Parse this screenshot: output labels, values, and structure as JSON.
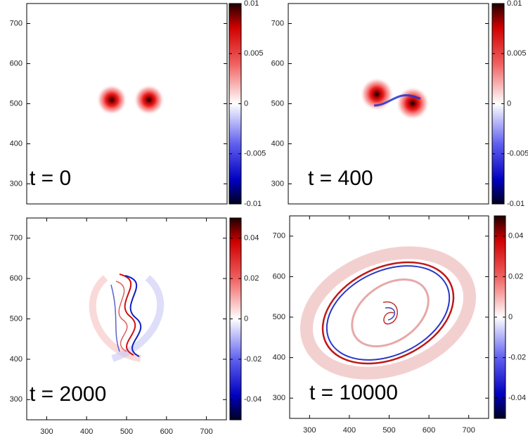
{
  "chart_data": [
    {
      "type": "heatmap",
      "annotation": "t = 0",
      "xlim": [
        250,
        750
      ],
      "ylim": [
        250,
        750
      ],
      "yticks": [
        300,
        400,
        500,
        600,
        700
      ],
      "clim": [
        -0.01,
        0.01
      ],
      "cticks": [
        -0.01,
        -0.005,
        0,
        0.005,
        0.01
      ]
    },
    {
      "type": "heatmap",
      "annotation": "t = 400",
      "xlim": [
        250,
        750
      ],
      "ylim": [
        250,
        750
      ],
      "yticks": [
        300,
        400,
        500,
        600,
        700
      ],
      "clim": [
        -0.01,
        0.01
      ],
      "cticks": [
        -0.01,
        -0.005,
        0,
        0.005,
        0.01
      ]
    },
    {
      "type": "heatmap",
      "annotation": "t = 2000",
      "xlim": [
        250,
        750
      ],
      "ylim": [
        250,
        750
      ],
      "xticks": [
        300,
        400,
        500,
        600,
        700
      ],
      "yticks": [
        300,
        400,
        500,
        600,
        700
      ],
      "clim": [
        -0.05,
        0.05
      ],
      "cticks": [
        -0.04,
        -0.02,
        0,
        0.02,
        0.04
      ]
    },
    {
      "type": "heatmap",
      "annotation": "t = 10000",
      "xlim": [
        250,
        750
      ],
      "ylim": [
        250,
        750
      ],
      "xticks": [
        300,
        400,
        500,
        600,
        700
      ],
      "yticks": [
        300,
        400,
        500,
        600,
        700
      ],
      "clim": [
        -0.05,
        0.05
      ],
      "cticks": [
        -0.04,
        -0.02,
        0,
        0.02,
        0.04
      ]
    }
  ]
}
